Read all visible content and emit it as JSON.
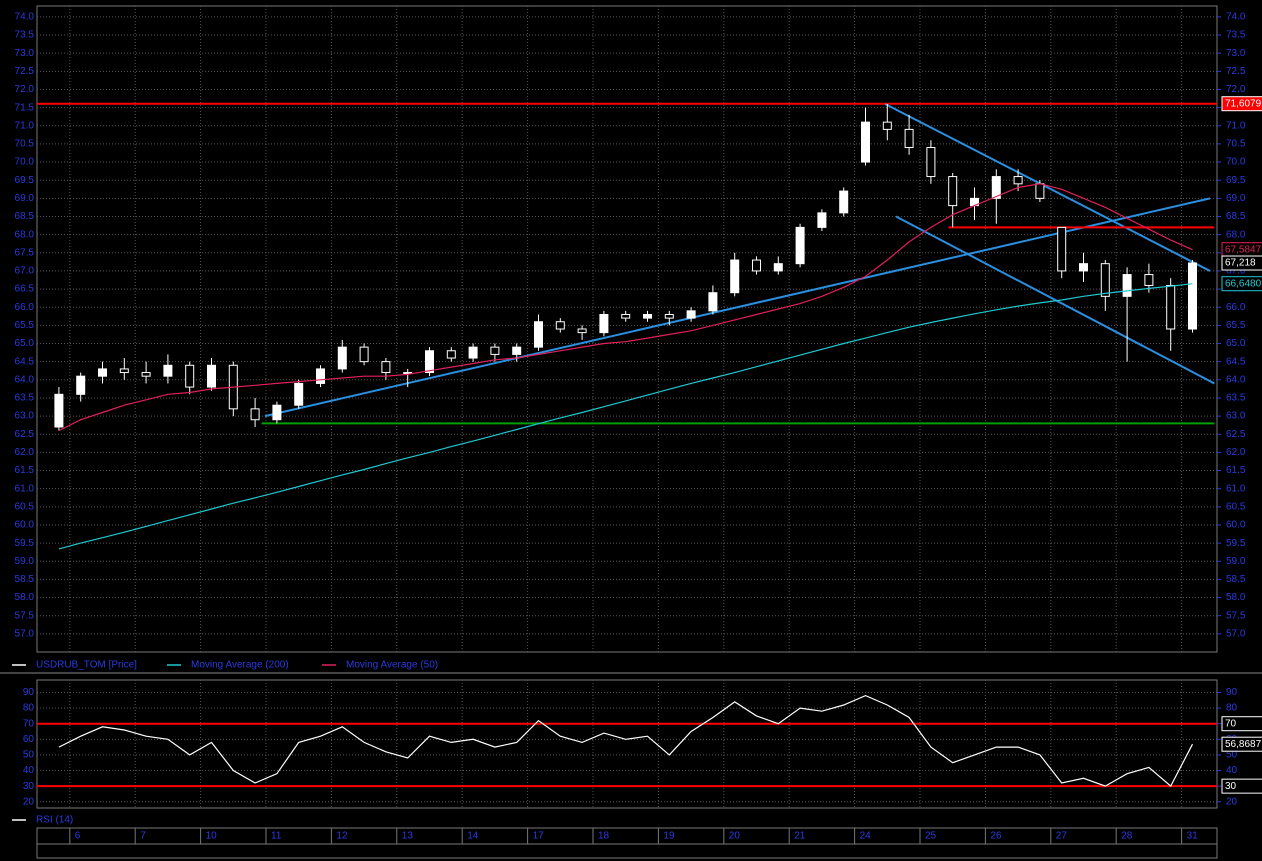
{
  "chart_data": [
    {
      "type": "candlestick",
      "ylim": [
        56.5,
        74.3
      ],
      "yticks": [
        {
          "value": 57,
          "label": "57.0"
        },
        {
          "value": 57.5,
          "label": "57.5"
        },
        {
          "value": 58,
          "label": "58.0"
        },
        {
          "value": 58.5,
          "label": "58.5"
        },
        {
          "value": 59,
          "label": "59.0"
        },
        {
          "value": 59.5,
          "label": "59.5"
        },
        {
          "value": 60,
          "label": "60.0"
        },
        {
          "value": 60.5,
          "label": "60.5"
        },
        {
          "value": 61,
          "label": "61.0"
        },
        {
          "value": 61.5,
          "label": "61.5"
        },
        {
          "value": 62,
          "label": "62.0"
        },
        {
          "value": 62.5,
          "label": "62.5"
        },
        {
          "value": 63,
          "label": "63.0"
        },
        {
          "value": 63.5,
          "label": "63.5"
        },
        {
          "value": 64,
          "label": "64.0"
        },
        {
          "value": 64.5,
          "label": "64.5"
        },
        {
          "value": 65,
          "label": "65.0"
        },
        {
          "value": 65.5,
          "label": "65.5"
        },
        {
          "value": 66,
          "label": "66.0"
        },
        {
          "value": 66.5,
          "label": "66.5"
        },
        {
          "value": 67,
          "label": "67.0"
        },
        {
          "value": 67.5,
          "label": "67.5"
        },
        {
          "value": 68,
          "label": "68.0"
        },
        {
          "value": 68.5,
          "label": "68.5"
        },
        {
          "value": 69,
          "label": "69.0"
        },
        {
          "value": 69.5,
          "label": "69.5"
        },
        {
          "value": 70,
          "label": "70.0"
        },
        {
          "value": 70.5,
          "label": "70.5"
        },
        {
          "value": 71,
          "label": "71.0"
        },
        {
          "value": 71.5,
          "label": "71.5"
        },
        {
          "value": 72,
          "label": "72.0"
        },
        {
          "value": 72.5,
          "label": "72.5"
        },
        {
          "value": 73,
          "label": "73.0"
        },
        {
          "value": 73.5,
          "label": "73.5"
        },
        {
          "value": 74,
          "label": "74.0"
        }
      ],
      "grid": true,
      "series": [
        {
          "name": "USDRUB_TOM [Price]",
          "type": "candlestick",
          "color": "#ffffff",
          "open": [
            62.7,
            63.6,
            64.1,
            64.3,
            64.2,
            64.1,
            64.4,
            63.8,
            64.4,
            63.2,
            62.9,
            63.3,
            63.9,
            64.3,
            64.9,
            64.5,
            64.2,
            64.2,
            64.8,
            64.6,
            64.9,
            64.7,
            64.9,
            65.6,
            65.4,
            65.3,
            65.8,
            65.7,
            65.8,
            65.7,
            65.9,
            66.4,
            67.3,
            67.0,
            67.2,
            68.2,
            68.6,
            70.0,
            71.1,
            70.9,
            70.4,
            69.6,
            68.8,
            69.0,
            69.6,
            69.4,
            68.2,
            67.0,
            67.2,
            66.3,
            66.9,
            66.6,
            65.4
          ],
          "high": [
            63.8,
            64.2,
            64.5,
            64.6,
            64.5,
            64.7,
            64.5,
            64.6,
            64.5,
            63.5,
            63.4,
            64.0,
            64.4,
            65.1,
            65.0,
            64.6,
            64.3,
            64.9,
            64.9,
            65.0,
            65.0,
            65.0,
            65.8,
            65.7,
            65.5,
            65.9,
            65.9,
            65.9,
            65.9,
            66.0,
            66.6,
            67.5,
            67.4,
            67.4,
            68.3,
            68.7,
            69.3,
            71.5,
            71.6,
            71.3,
            70.6,
            69.7,
            69.3,
            69.8,
            69.8,
            69.5,
            68.2,
            67.5,
            67.3,
            67.1,
            67.2,
            66.8,
            67.3
          ],
          "low": [
            62.6,
            63.4,
            63.9,
            64.0,
            63.9,
            63.9,
            63.6,
            63.7,
            63.0,
            62.7,
            62.8,
            63.2,
            63.8,
            64.2,
            64.4,
            64.0,
            63.8,
            64.1,
            64.5,
            64.5,
            64.5,
            64.5,
            64.8,
            65.3,
            65.1,
            65.2,
            65.6,
            65.6,
            65.5,
            65.6,
            65.8,
            66.3,
            66.9,
            66.9,
            67.1,
            68.1,
            68.5,
            69.9,
            70.6,
            70.2,
            69.4,
            68.2,
            68.4,
            68.3,
            69.2,
            68.9,
            66.8,
            66.7,
            65.9,
            64.5,
            66.4,
            64.8,
            65.3
          ],
          "close": [
            63.6,
            64.1,
            64.3,
            64.2,
            64.1,
            64.4,
            63.8,
            64.4,
            63.2,
            62.9,
            63.3,
            63.9,
            64.3,
            64.9,
            64.5,
            64.2,
            64.2,
            64.8,
            64.6,
            64.9,
            64.7,
            64.9,
            65.6,
            65.4,
            65.3,
            65.8,
            65.7,
            65.8,
            65.7,
            65.9,
            66.4,
            67.3,
            67.0,
            67.2,
            68.2,
            68.6,
            69.2,
            71.1,
            70.9,
            70.4,
            69.6,
            68.8,
            69.0,
            69.6,
            69.4,
            69.0,
            67.0,
            67.2,
            66.3,
            66.9,
            66.6,
            65.4,
            67.218
          ]
        },
        {
          "name": "Moving Average (200)",
          "type": "line",
          "color": "#20c8d0",
          "values": [
            59.34,
            59.5,
            59.65,
            59.8,
            59.96,
            60.12,
            60.28,
            60.44,
            60.6,
            60.75,
            60.9,
            61.06,
            61.22,
            61.38,
            61.53,
            61.69,
            61.85,
            62.0,
            62.16,
            62.31,
            62.47,
            62.63,
            62.79,
            62.95,
            63.1,
            63.26,
            63.42,
            63.58,
            63.74,
            63.9,
            64.05,
            64.2,
            64.36,
            64.52,
            64.68,
            64.84,
            65.0,
            65.15,
            65.3,
            65.45,
            65.58,
            65.7,
            65.82,
            65.93,
            66.03,
            66.12,
            66.2,
            66.3,
            66.38,
            66.45,
            66.52,
            66.58,
            66.648
          ]
        },
        {
          "name": "Moving Average (50)",
          "type": "line",
          "color": "#e0205a",
          "values": [
            62.6,
            62.9,
            63.1,
            63.3,
            63.45,
            63.6,
            63.65,
            63.75,
            63.8,
            63.85,
            63.9,
            63.95,
            64.0,
            64.05,
            64.1,
            64.1,
            64.15,
            64.25,
            64.35,
            64.45,
            64.55,
            64.6,
            64.7,
            64.8,
            64.9,
            65.0,
            65.05,
            65.15,
            65.25,
            65.35,
            65.5,
            65.65,
            65.8,
            65.95,
            66.1,
            66.3,
            66.55,
            66.85,
            67.3,
            67.8,
            68.2,
            68.55,
            68.8,
            69.05,
            69.3,
            69.4,
            69.25,
            69.0,
            68.75,
            68.45,
            68.15,
            67.85,
            67.5847
          ]
        }
      ],
      "hlines": [
        {
          "value": 71.6079,
          "color": "#ff0000"
        }
      ],
      "lines": [
        {
          "color": "#2a8fe0",
          "x": [
            9.45,
            52.8
          ],
          "y": [
            63.0,
            69.0
          ]
        },
        {
          "color": "#2a8fe0",
          "x": [
            37.9,
            52.8
          ],
          "y": [
            71.6,
            67.0
          ]
        },
        {
          "color": "#2a8fe0",
          "x": [
            38.4,
            53.0
          ],
          "y": [
            68.5,
            63.9
          ]
        },
        {
          "color": "#ff0000",
          "x": [
            40.8,
            53.0
          ],
          "y": [
            68.2,
            68.2
          ]
        },
        {
          "color": "#00a000",
          "x": [
            9.3,
            53.0
          ],
          "y": [
            62.8,
            62.8
          ]
        }
      ],
      "markers": [
        {
          "value": 71.6079,
          "label": "71,6079",
          "color": "#ffffff",
          "background": "#ff0000"
        },
        {
          "value": 67.5847,
          "label": "67,5847",
          "color": "#e0205a",
          "background": "#000000"
        },
        {
          "value": 67.218,
          "label": "67,218",
          "color": "#ffffff",
          "background": "#000000"
        },
        {
          "value": 66.648,
          "label": "66,6480",
          "color": "#20c8d0",
          "background": "#000000"
        }
      ]
    },
    {
      "type": "line",
      "categories": [
        null,
        "6",
        null,
        null,
        "7",
        null,
        null,
        "10",
        null,
        null,
        "11",
        null,
        null,
        "12",
        null,
        null,
        "13",
        null,
        null,
        "14",
        null,
        null,
        "17",
        null,
        null,
        "18",
        null,
        null,
        "19",
        null,
        null,
        "20",
        null,
        null,
        "21",
        null,
        null,
        "24",
        null,
        null,
        "25",
        null,
        null,
        "26",
        null,
        null,
        "27",
        null,
        null,
        "28",
        null,
        null,
        "31"
      ],
      "ylim": [
        16,
        98
      ],
      "yticks": [
        20,
        30,
        40,
        50,
        60,
        70,
        80,
        90
      ],
      "grid": true,
      "series": [
        {
          "name": "RSI (14)",
          "color": "#ffffff",
          "values": [
            55,
            62,
            68,
            66,
            62,
            60,
            50,
            58,
            40,
            32,
            38,
            58,
            62,
            68,
            58,
            52,
            48,
            62,
            58,
            60,
            55,
            58,
            72,
            62,
            58,
            64,
            60,
            62,
            50,
            65,
            74,
            84,
            75,
            70,
            80,
            78,
            82,
            88,
            82,
            74,
            55,
            45,
            50,
            55,
            55,
            50,
            32,
            35,
            30,
            38,
            42,
            30,
            56.8687
          ]
        }
      ],
      "hlines": [
        {
          "value": 70,
          "color": "#ff0000"
        },
        {
          "value": 30,
          "color": "#ff0000"
        }
      ],
      "markers": [
        {
          "value": 70,
          "label": "70",
          "color": "#ffffff",
          "background": "#000000"
        },
        {
          "value": 56.8687,
          "label": "56,8687",
          "color": "#ffffff",
          "background": "#000000"
        },
        {
          "value": 30,
          "label": "30",
          "color": "#ffffff",
          "background": "#000000"
        }
      ]
    }
  ]
}
